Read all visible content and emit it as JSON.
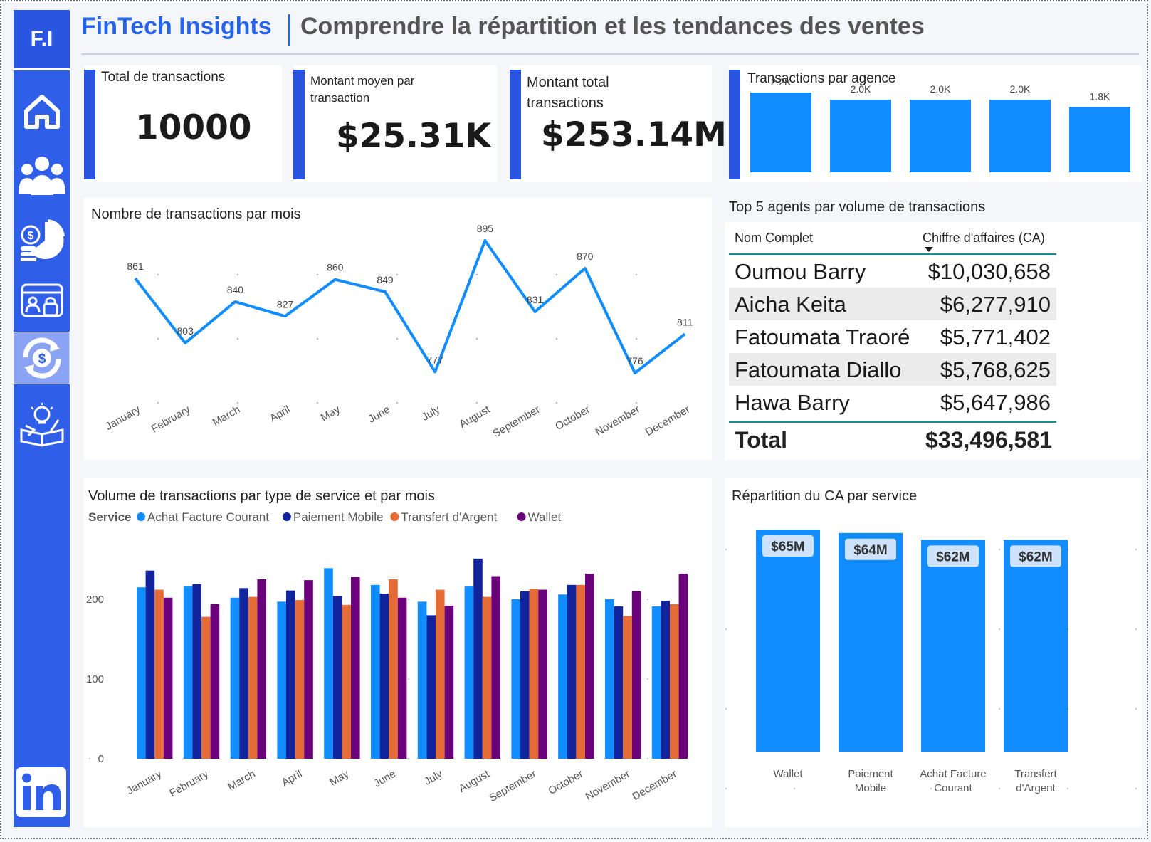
{
  "brand": {
    "logo": "F.I",
    "name": "FinTech Insights",
    "title": "Comprendre la répartition et les tendances des ventes"
  },
  "sidebar": {
    "items": [
      {
        "icon": "home-icon"
      },
      {
        "icon": "users-icon"
      },
      {
        "icon": "finance-pie-icon"
      },
      {
        "icon": "security-card-icon"
      },
      {
        "icon": "money-exchange-icon",
        "active": true
      },
      {
        "icon": "ideas-icon"
      }
    ],
    "social": "linkedin-icon"
  },
  "kpis": [
    {
      "label": "Total de transactions",
      "value": "10000"
    },
    {
      "label": "Montant moyen par transaction",
      "value": "$25.31K"
    },
    {
      "label": "Montant total transactions",
      "value": "$253.14M"
    }
  ],
  "agency_chart": {
    "title": "Transactions par agence"
  },
  "monthly_chart": {
    "title": "Nombre de transactions par mois"
  },
  "top_agents": {
    "title": "Top 5 agents par volume de transactions",
    "col_name": "Nom Complet",
    "col_value": "Chiffre d'affaires (CA)",
    "rows": [
      {
        "name": "Oumou Barry",
        "value": "$10,030,658"
      },
      {
        "name": "Aicha Keita",
        "value": "$6,277,910"
      },
      {
        "name": "Fatoumata Traoré",
        "value": "$5,771,402"
      },
      {
        "name": "Fatoumata Diallo",
        "value": "$5,768,625"
      },
      {
        "name": "Hawa Barry",
        "value": "$5,647,986"
      }
    ],
    "total_label": "Total",
    "total_value": "$33,496,581"
  },
  "service_month_chart": {
    "title": "Volume de transactions par type de service et par mois",
    "legend_title": "Service"
  },
  "service_ca_chart": {
    "title": "Répartition  du CA par service"
  },
  "chart_data": [
    {
      "type": "bar",
      "title": "Transactions par agence",
      "categories": [
        "",
        "",
        "",
        "",
        ""
      ],
      "values": [
        2200,
        2000,
        2000,
        2000,
        1800
      ],
      "data_labels": [
        "2.2K",
        "2.0K",
        "2.0K",
        "2.0K",
        "1.8K"
      ],
      "color": "#118dff"
    },
    {
      "type": "line",
      "title": "Nombre de transactions par mois",
      "categories": [
        "January",
        "February",
        "March",
        "April",
        "May",
        "June",
        "July",
        "August",
        "September",
        "October",
        "November",
        "December"
      ],
      "values": [
        861,
        803,
        840,
        827,
        860,
        849,
        777,
        895,
        831,
        870,
        776,
        811
      ],
      "color": "#118dff"
    },
    {
      "type": "bar",
      "title": "Volume de transactions par type de service et par mois",
      "categories": [
        "January",
        "February",
        "March",
        "April",
        "May",
        "June",
        "July",
        "August",
        "September",
        "October",
        "November",
        "December"
      ],
      "legend": "top-left",
      "y_ticks": [
        0,
        100,
        200
      ],
      "ylim": [
        0,
        250
      ],
      "series": [
        {
          "name": "Achat Facture Courant",
          "color": "#118dff",
          "values": [
            215,
            216,
            202,
            197,
            239,
            218,
            197,
            216,
            200,
            206,
            200,
            191
          ]
        },
        {
          "name": "Paiement Mobile",
          "color": "#12239e",
          "values": [
            236,
            219,
            214,
            211,
            204,
            207,
            180,
            251,
            210,
            218,
            191,
            198
          ]
        },
        {
          "name": "Transfert d'Argent",
          "color": "#e66c37",
          "values": [
            212,
            178,
            203,
            199,
            193,
            225,
            212,
            203,
            213,
            218,
            179,
            194
          ]
        },
        {
          "name": "Wallet",
          "color": "#6b007b",
          "values": [
            202,
            194,
            225,
            224,
            228,
            202,
            192,
            229,
            212,
            232,
            210,
            232
          ]
        }
      ]
    },
    {
      "type": "bar",
      "title": "Répartition  du CA par service",
      "categories": [
        "Wallet",
        "Paiement Mobile",
        "Achat Facture Courant",
        "Transfert d'Argent"
      ],
      "category_lines": [
        [
          "Wallet"
        ],
        [
          "Paiement",
          "Mobile"
        ],
        [
          "Achat Facture",
          "Courant"
        ],
        [
          "Transfert",
          "d'Argent"
        ]
      ],
      "values": [
        65,
        64,
        62,
        62
      ],
      "data_labels": [
        "$65M",
        "$64M",
        "$62M",
        "$62M"
      ],
      "unit": "M$",
      "color": "#118dff"
    }
  ]
}
